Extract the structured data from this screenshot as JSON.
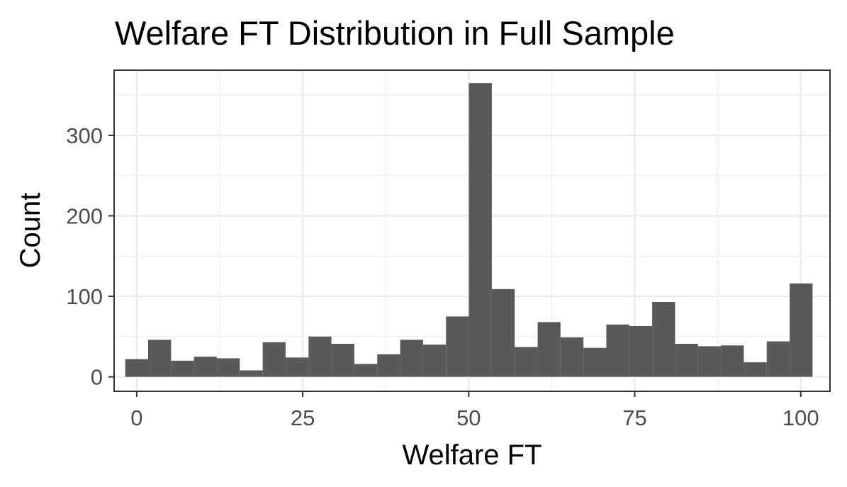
{
  "chart_data": {
    "type": "bar",
    "title": "Welfare FT Distribution in Full Sample",
    "xlabel": "Welfare FT",
    "ylabel": "Count",
    "x_ticks": [
      "0",
      "25",
      "50",
      "75",
      "100"
    ],
    "y_ticks": [
      "0",
      "100",
      "200",
      "300"
    ],
    "xlim": [
      -3.4,
      104.4
    ],
    "ylim": [
      -18,
      381
    ],
    "grid": true,
    "bin_width": 3.45,
    "bin_centers": [
      0,
      3.45,
      6.9,
      10.35,
      13.8,
      17.25,
      20.7,
      24.15,
      27.6,
      31.05,
      34.5,
      37.95,
      41.4,
      44.85,
      48.3,
      51.75,
      55.2,
      58.65,
      62.1,
      65.55,
      69.0,
      72.45,
      75.9,
      79.35,
      82.8,
      86.25,
      89.7,
      93.15,
      96.6,
      100.05
    ],
    "values": [
      22,
      46,
      20,
      25,
      23,
      8,
      43,
      24,
      50,
      41,
      16,
      28,
      46,
      40,
      75,
      365,
      109,
      37,
      68,
      49,
      36,
      65,
      63,
      93,
      41,
      38,
      39,
      18,
      44,
      116
    ],
    "bar_color": "#595959",
    "panel_border_color": "#333333",
    "grid_color": "#ebebeb"
  }
}
